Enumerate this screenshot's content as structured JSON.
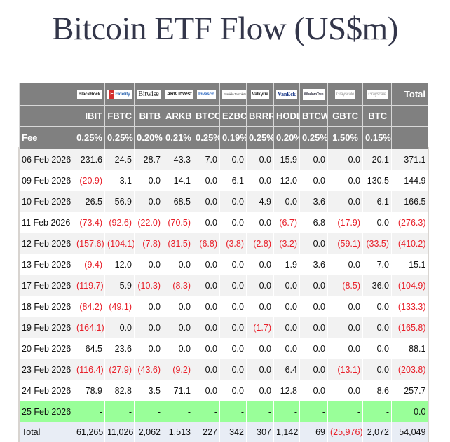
{
  "title": "Bitcoin ETF Flow (US$m)",
  "table": {
    "issuers": [
      {
        "ticker": "IBIT",
        "issuer": "BlackRock",
        "fee": "0.25%"
      },
      {
        "ticker": "FBTC",
        "issuer": "Fidelity",
        "fee": "0.25%"
      },
      {
        "ticker": "BITB",
        "issuer": "Bitwise",
        "fee": "0.20%"
      },
      {
        "ticker": "ARKB",
        "issuer": "ARK Invest",
        "fee": "0.21%"
      },
      {
        "ticker": "BTCO",
        "issuer": "Invesco",
        "fee": "0.25%"
      },
      {
        "ticker": "EZBC",
        "issuer": "Franklin Templeton",
        "fee": "0.19%"
      },
      {
        "ticker": "BRRR",
        "issuer": "Valkyrie",
        "fee": "0.25%"
      },
      {
        "ticker": "HODL",
        "issuer": "VanEck",
        "fee": "0.20%"
      },
      {
        "ticker": "BTCW",
        "issuer": "WisdomTree",
        "fee": "0.25%"
      },
      {
        "ticker": "GBTC",
        "issuer": "Grayscale",
        "fee": "1.50%"
      },
      {
        "ticker": "BTC",
        "issuer": "Grayscale",
        "fee": "0.15%"
      }
    ],
    "total_header": "Total",
    "fee_label": "Fee",
    "rows": [
      {
        "date": "06 Feb 2026",
        "values": [
          "231.6",
          "24.5",
          "28.7",
          "43.3",
          "7.0",
          "0.0",
          "0.0",
          "15.9",
          "0.0",
          "0.0",
          "20.1"
        ],
        "total": "371.1"
      },
      {
        "date": "09 Feb 2026",
        "values": [
          "(20.9)",
          "3.1",
          "0.0",
          "14.1",
          "0.0",
          "6.1",
          "0.0",
          "12.0",
          "0.0",
          "0.0",
          "130.5"
        ],
        "total": "144.9"
      },
      {
        "date": "10 Feb 2026",
        "values": [
          "26.5",
          "56.9",
          "0.0",
          "68.5",
          "0.0",
          "0.0",
          "4.9",
          "0.0",
          "3.6",
          "0.0",
          "6.1"
        ],
        "total": "166.5"
      },
      {
        "date": "11 Feb 2026",
        "values": [
          "(73.4)",
          "(92.6)",
          "(22.0)",
          "(70.5)",
          "0.0",
          "0.0",
          "0.0",
          "(6.7)",
          "6.8",
          "(17.9)",
          "0.0"
        ],
        "total": "(276.3)"
      },
      {
        "date": "12 Feb 2026",
        "values": [
          "(157.6)",
          "(104.1)",
          "(7.8)",
          "(31.5)",
          "(6.8)",
          "(3.8)",
          "(2.8)",
          "(3.2)",
          "0.0",
          "(59.1)",
          "(33.5)"
        ],
        "total": "(410.2)"
      },
      {
        "date": "13 Feb 2026",
        "values": [
          "(9.4)",
          "12.0",
          "0.0",
          "0.0",
          "0.0",
          "0.0",
          "0.0",
          "1.9",
          "3.6",
          "0.0",
          "7.0"
        ],
        "total": "15.1"
      },
      {
        "date": "17 Feb 2026",
        "values": [
          "(119.7)",
          "5.9",
          "(10.3)",
          "(8.3)",
          "0.0",
          "0.0",
          "0.0",
          "0.0",
          "0.0",
          "(8.5)",
          "36.0"
        ],
        "total": "(104.9)"
      },
      {
        "date": "18 Feb 2026",
        "values": [
          "(84.2)",
          "(49.1)",
          "0.0",
          "0.0",
          "0.0",
          "0.0",
          "0.0",
          "0.0",
          "0.0",
          "0.0",
          "0.0"
        ],
        "total": "(133.3)"
      },
      {
        "date": "19 Feb 2026",
        "values": [
          "(164.1)",
          "0.0",
          "0.0",
          "0.0",
          "0.0",
          "0.0",
          "(1.7)",
          "0.0",
          "0.0",
          "0.0",
          "0.0"
        ],
        "total": "(165.8)"
      },
      {
        "date": "20 Feb 2026",
        "values": [
          "64.5",
          "23.6",
          "0.0",
          "0.0",
          "0.0",
          "0.0",
          "0.0",
          "0.0",
          "0.0",
          "0.0",
          "0.0"
        ],
        "total": "88.1"
      },
      {
        "date": "23 Feb 2026",
        "values": [
          "(116.4)",
          "(27.9)",
          "(43.6)",
          "(9.2)",
          "0.0",
          "0.0",
          "0.0",
          "6.4",
          "0.0",
          "(13.1)",
          "0.0"
        ],
        "total": "(203.8)"
      },
      {
        "date": "24 Feb 2026",
        "values": [
          "78.9",
          "82.8",
          "3.5",
          "71.1",
          "0.0",
          "0.0",
          "0.0",
          "12.8",
          "0.0",
          "0.0",
          "8.6"
        ],
        "total": "257.7"
      },
      {
        "date": "25 Feb 2026",
        "values": [
          "-",
          "-",
          "-",
          "-",
          "-",
          "-",
          "-",
          "-",
          "-",
          "-",
          "-"
        ],
        "total": "0.0",
        "pending": true
      }
    ],
    "totals_row": {
      "label": "Total",
      "values": [
        "61,265",
        "11,026",
        "2,062",
        "1,513",
        "227",
        "342",
        "307",
        "1,142",
        "69",
        "(25,976)",
        "2,072"
      ],
      "total": "54,049"
    }
  },
  "colors": {
    "header_bg": "#808080",
    "negative": "#e8202a",
    "pending_row": "#99ff99",
    "total_row": "#e8edf5",
    "title": "#33364a"
  }
}
